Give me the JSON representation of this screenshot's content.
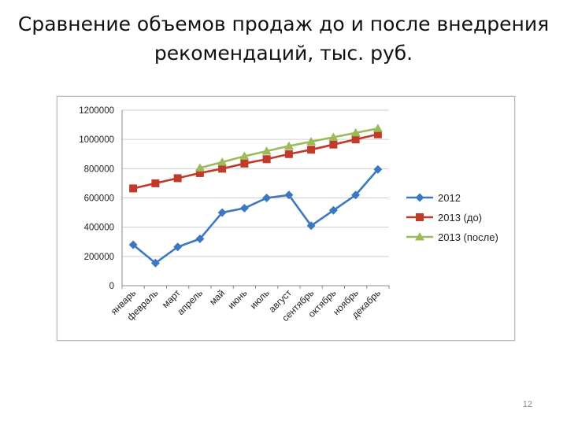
{
  "slide": {
    "title": "Сравнение объемов продаж до и после внедрения рекомендаций, тыс. руб.",
    "page_number": "12"
  },
  "chart_data": {
    "type": "line",
    "title": "",
    "xlabel": "",
    "ylabel": "",
    "categories": [
      "январь",
      "февраль",
      "март",
      "апрель",
      "май",
      "июнь",
      "июль",
      "август",
      "сентябрь",
      "октябрь",
      "ноябрь",
      "декабрь"
    ],
    "ylim": [
      0,
      1200000
    ],
    "yticks": [
      0,
      200000,
      400000,
      600000,
      800000,
      1000000,
      1200000
    ],
    "ytick_labels": [
      "0",
      "200000",
      "400000",
      "600000",
      "800000",
      "1000000",
      "1200000"
    ],
    "grid": true,
    "legend_position": "right",
    "series": [
      {
        "name": "2012",
        "color": "#3c78c0",
        "marker": "diamond",
        "values": [
          280000,
          155000,
          265000,
          320000,
          500000,
          530000,
          600000,
          620000,
          410000,
          515000,
          620000,
          795000
        ]
      },
      {
        "name": "2013 (до)",
        "color": "#c0392b",
        "marker": "square",
        "values": [
          665000,
          700000,
          735000,
          770000,
          800000,
          835000,
          865000,
          900000,
          930000,
          965000,
          1000000,
          1035000
        ]
      },
      {
        "name": "2013 (после)",
        "color": "#9bbb59",
        "marker": "triangle",
        "values": [
          null,
          null,
          null,
          805000,
          845000,
          885000,
          920000,
          955000,
          985000,
          1015000,
          1045000,
          1075000
        ]
      }
    ]
  }
}
